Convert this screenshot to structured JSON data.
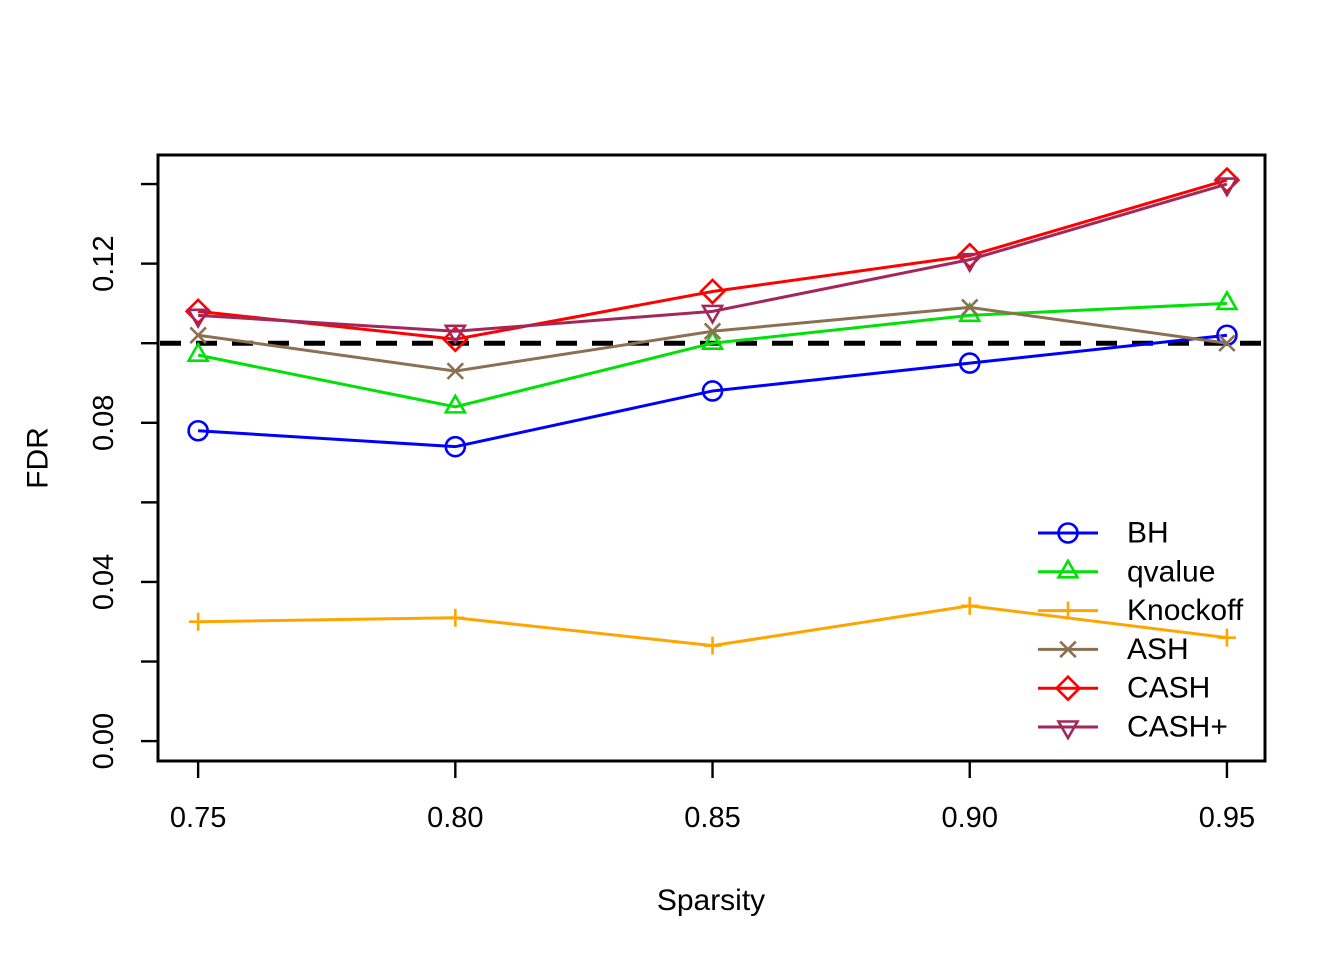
{
  "figure": {
    "background": "#ffffff",
    "axis_color": "#000000"
  },
  "chart_data": {
    "type": "line",
    "xlabel": "Sparsity",
    "ylabel": "FDR",
    "xlim": [
      0.7422,
      0.9574
    ],
    "ylim": [
      -0.005,
      0.1473
    ],
    "grid": "off",
    "x_ticks": [
      {
        "v": 0.75,
        "label": "0.75"
      },
      {
        "v": 0.8,
        "label": "0.80"
      },
      {
        "v": 0.85,
        "label": "0.85"
      },
      {
        "v": 0.9,
        "label": "0.90"
      },
      {
        "v": 0.95,
        "label": "0.95"
      }
    ],
    "y_ticks": [
      {
        "v": 0.0,
        "label": "0.00"
      },
      {
        "v": 0.02,
        "label": ""
      },
      {
        "v": 0.04,
        "label": "0.04"
      },
      {
        "v": 0.06,
        "label": ""
      },
      {
        "v": 0.08,
        "label": "0.08"
      },
      {
        "v": 0.1,
        "label": ""
      },
      {
        "v": 0.12,
        "label": "0.12"
      },
      {
        "v": 0.14,
        "label": ""
      }
    ],
    "x": [
      0.75,
      0.8,
      0.85,
      0.9,
      0.95
    ],
    "reference_line": {
      "y": 0.1,
      "style": "dashed",
      "color": "#000000"
    },
    "series": [
      {
        "name": "BH",
        "color": "#0000ff",
        "marker": "circle",
        "values": [
          0.078,
          0.074,
          0.088,
          0.095,
          0.102
        ]
      },
      {
        "name": "qvalue",
        "color": "#00e106",
        "marker": "triangle-up",
        "values": [
          0.097,
          0.084,
          0.1,
          0.107,
          0.11
        ]
      },
      {
        "name": "Knockoff",
        "color": "#ffa500",
        "marker": "plus",
        "values": [
          0.03,
          0.031,
          0.024,
          0.034,
          0.026
        ]
      },
      {
        "name": "ASH",
        "color": "#8b7052",
        "marker": "x",
        "values": [
          0.102,
          0.093,
          0.103,
          0.109,
          0.1
        ]
      },
      {
        "name": "CASH",
        "color": "#ff0000",
        "marker": "diamond",
        "values": [
          0.108,
          0.101,
          0.113,
          0.122,
          0.141
        ]
      },
      {
        "name": "CASH+",
        "color": "#a3275a",
        "marker": "triangle-down",
        "values": [
          0.107,
          0.103,
          0.108,
          0.121,
          0.14
        ]
      }
    ],
    "legend": {
      "position": "inside-right-bottom",
      "border": "none",
      "entries": [
        "BH",
        "qvalue",
        "Knockoff",
        "ASH",
        "CASH",
        "CASH+"
      ]
    }
  }
}
